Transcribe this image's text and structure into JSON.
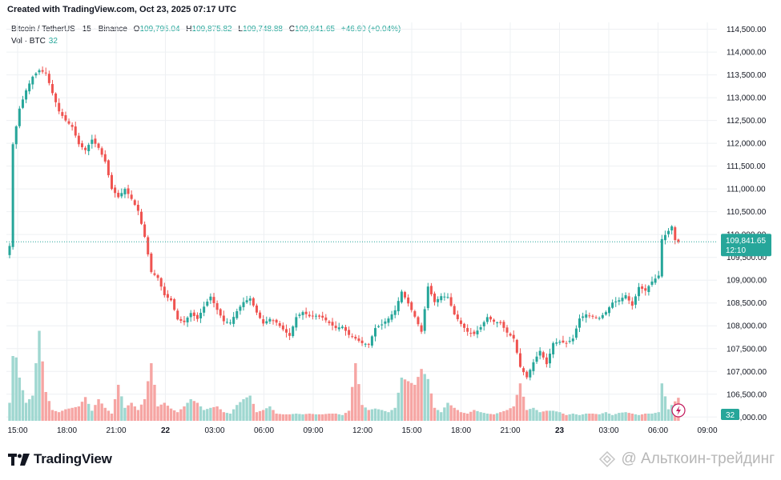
{
  "header": {
    "created": "Created with TradingView.com, Oct 23, 2025 07:17 UTC"
  },
  "legend": {
    "symbol": "Bitcoin / TetherUS · 15 · Binance",
    "o_label": "O",
    "o_value": "109,795.04",
    "h_label": "H",
    "h_value": "109,875.82",
    "l_label": "L",
    "l_value": "109,748.88",
    "c_label": "C",
    "c_value": "109,841.65",
    "change": "+46.60 (+0.04%)",
    "vol_label": "Vol · BTC",
    "vol_value": "32"
  },
  "price_badge": {
    "price": "109,841.65",
    "countdown": "12:10"
  },
  "volume_badge": "32",
  "footer": {
    "brand": "TradingView",
    "watermark": "@ Альткоин-трейдинг"
  },
  "colors": {
    "up": "#26a69a",
    "down": "#ef5350",
    "up_vol": "#9fd7d0",
    "down_vol": "#f6a5a3",
    "grid": "#eef0f3"
  },
  "icons": [
    "tradingview-logo-icon",
    "lightning-icon",
    "watermark-icon"
  ],
  "chart_data": {
    "type": "candlestick",
    "interval": "15",
    "y_axis": {
      "ticks": [
        106000,
        106500,
        107000,
        107500,
        108000,
        108500,
        109000,
        109500,
        110000,
        110500,
        111000,
        111500,
        112000,
        112500,
        113000,
        113500,
        114000,
        114500
      ],
      "labels": [
        "106,000.00",
        "106,500.00",
        "107,000.00",
        "107,500.00",
        "108,000.00",
        "108,500.00",
        "109,000.00",
        "109,500.00",
        "110,000.00",
        "110,500.00",
        "111,000.00",
        "111,500.00",
        "112,000.00",
        "112,500.00",
        "113,000.00",
        "113,500.00",
        "114,000.00",
        "114,500.00"
      ],
      "range": [
        105900,
        114650
      ]
    },
    "x_axis": {
      "labels": [
        "15:00",
        "18:00",
        "21:00",
        "22",
        "03:00",
        "06:00",
        "09:00",
        "12:00",
        "15:00",
        "18:00",
        "21:00",
        "23",
        "03:00",
        "06:00",
        "09:00"
      ],
      "bold": [
        "22",
        "23"
      ]
    },
    "last_price": 109841.65,
    "approx_close_path": [
      [
        0,
        109750
      ],
      [
        1,
        111980
      ],
      [
        3,
        112760
      ],
      [
        5,
        113160
      ],
      [
        7,
        113460
      ],
      [
        9,
        113600
      ],
      [
        11,
        113540
      ],
      [
        13,
        113100
      ],
      [
        15,
        112700
      ],
      [
        17,
        112500
      ],
      [
        19,
        112360
      ],
      [
        21,
        111980
      ],
      [
        23,
        111850
      ],
      [
        25,
        112080
      ],
      [
        27,
        111900
      ],
      [
        29,
        111600
      ],
      [
        31,
        111000
      ],
      [
        33,
        110820
      ],
      [
        35,
        111000
      ],
      [
        37,
        110780
      ],
      [
        39,
        110520
      ],
      [
        41,
        109950
      ],
      [
        43,
        109180
      ],
      [
        45,
        109050
      ],
      [
        47,
        108670
      ],
      [
        49,
        108560
      ],
      [
        51,
        108140
      ],
      [
        53,
        108080
      ],
      [
        55,
        108280
      ],
      [
        57,
        108150
      ],
      [
        59,
        108420
      ],
      [
        61,
        108640
      ],
      [
        63,
        108350
      ],
      [
        65,
        108100
      ],
      [
        67,
        108070
      ],
      [
        69,
        108320
      ],
      [
        71,
        108520
      ],
      [
        73,
        108600
      ],
      [
        75,
        108290
      ],
      [
        77,
        108050
      ],
      [
        79,
        108150
      ],
      [
        81,
        108070
      ],
      [
        83,
        107920
      ],
      [
        85,
        107780
      ],
      [
        87,
        108190
      ],
      [
        89,
        108300
      ],
      [
        91,
        108210
      ],
      [
        93,
        108220
      ],
      [
        95,
        108180
      ],
      [
        97,
        108060
      ],
      [
        99,
        107950
      ],
      [
        101,
        107980
      ],
      [
        103,
        107800
      ],
      [
        105,
        107720
      ],
      [
        107,
        107620
      ],
      [
        109,
        107590
      ],
      [
        111,
        107950
      ],
      [
        113,
        108030
      ],
      [
        115,
        108160
      ],
      [
        117,
        108340
      ],
      [
        119,
        108750
      ],
      [
        121,
        108490
      ],
      [
        123,
        108200
      ],
      [
        125,
        107870
      ],
      [
        127,
        108860
      ],
      [
        129,
        108520
      ],
      [
        131,
        108650
      ],
      [
        133,
        108630
      ],
      [
        135,
        108250
      ],
      [
        137,
        108040
      ],
      [
        139,
        107870
      ],
      [
        141,
        107820
      ],
      [
        143,
        107970
      ],
      [
        145,
        108190
      ],
      [
        147,
        108090
      ],
      [
        149,
        108060
      ],
      [
        151,
        107850
      ],
      [
        153,
        107720
      ],
      [
        155,
        107100
      ],
      [
        157,
        106870
      ],
      [
        159,
        107200
      ],
      [
        161,
        107450
      ],
      [
        163,
        107160
      ],
      [
        165,
        107620
      ],
      [
        167,
        107650
      ],
      [
        169,
        107620
      ],
      [
        171,
        107720
      ],
      [
        173,
        108160
      ],
      [
        175,
        108250
      ],
      [
        177,
        108200
      ],
      [
        179,
        108170
      ],
      [
        181,
        108300
      ],
      [
        183,
        108510
      ],
      [
        185,
        108560
      ],
      [
        187,
        108670
      ],
      [
        189,
        108440
      ],
      [
        191,
        108850
      ],
      [
        193,
        108770
      ],
      [
        195,
        108970
      ],
      [
        197,
        109100
      ],
      [
        198,
        109900
      ],
      [
        200,
        110080
      ],
      [
        201,
        110180
      ],
      [
        202,
        109880
      ],
      [
        203,
        109842
      ]
    ],
    "approx_volume_path": [
      [
        0,
        25
      ],
      [
        1,
        90
      ],
      [
        2,
        88
      ],
      [
        3,
        60
      ],
      [
        5,
        25
      ],
      [
        7,
        35
      ],
      [
        9,
        125
      ],
      [
        11,
        40
      ],
      [
        13,
        15
      ],
      [
        15,
        12
      ],
      [
        17,
        16
      ],
      [
        19,
        18
      ],
      [
        21,
        20
      ],
      [
        23,
        33
      ],
      [
        25,
        14
      ],
      [
        27,
        30
      ],
      [
        29,
        18
      ],
      [
        31,
        10
      ],
      [
        33,
        50
      ],
      [
        35,
        18
      ],
      [
        37,
        25
      ],
      [
        39,
        15
      ],
      [
        41,
        30
      ],
      [
        43,
        80
      ],
      [
        45,
        20
      ],
      [
        47,
        25
      ],
      [
        49,
        17
      ],
      [
        51,
        12
      ],
      [
        53,
        20
      ],
      [
        55,
        30
      ],
      [
        57,
        25
      ],
      [
        59,
        15
      ],
      [
        61,
        18
      ],
      [
        63,
        20
      ],
      [
        65,
        12
      ],
      [
        67,
        10
      ],
      [
        69,
        22
      ],
      [
        71,
        30
      ],
      [
        73,
        35
      ],
      [
        75,
        12
      ],
      [
        77,
        15
      ],
      [
        79,
        20
      ],
      [
        81,
        10
      ],
      [
        83,
        9
      ],
      [
        85,
        9
      ],
      [
        87,
        10
      ],
      [
        89,
        9
      ],
      [
        91,
        10
      ],
      [
        93,
        9
      ],
      [
        95,
        9
      ],
      [
        97,
        10
      ],
      [
        99,
        10
      ],
      [
        101,
        8
      ],
      [
        103,
        14
      ],
      [
        105,
        80
      ],
      [
        107,
        22
      ],
      [
        109,
        15
      ],
      [
        111,
        17
      ],
      [
        113,
        15
      ],
      [
        115,
        12
      ],
      [
        117,
        18
      ],
      [
        119,
        60
      ],
      [
        121,
        55
      ],
      [
        123,
        50
      ],
      [
        125,
        72
      ],
      [
        127,
        58
      ],
      [
        129,
        18
      ],
      [
        131,
        12
      ],
      [
        133,
        25
      ],
      [
        135,
        18
      ],
      [
        137,
        12
      ],
      [
        139,
        10
      ],
      [
        141,
        15
      ],
      [
        143,
        12
      ],
      [
        145,
        10
      ],
      [
        147,
        9
      ],
      [
        149,
        12
      ],
      [
        151,
        15
      ],
      [
        153,
        20
      ],
      [
        155,
        52
      ],
      [
        157,
        15
      ],
      [
        159,
        18
      ],
      [
        161,
        12
      ],
      [
        163,
        14
      ],
      [
        165,
        14
      ],
      [
        167,
        12
      ],
      [
        169,
        8
      ],
      [
        171,
        10
      ],
      [
        173,
        8
      ],
      [
        175,
        10
      ],
      [
        177,
        10
      ],
      [
        179,
        9
      ],
      [
        181,
        12
      ],
      [
        183,
        8
      ],
      [
        185,
        11
      ],
      [
        187,
        12
      ],
      [
        189,
        10
      ],
      [
        191,
        8
      ],
      [
        193,
        10
      ],
      [
        195,
        10
      ],
      [
        197,
        12
      ],
      [
        198,
        52
      ],
      [
        200,
        16
      ],
      [
        201,
        22
      ],
      [
        203,
        32
      ]
    ]
  }
}
